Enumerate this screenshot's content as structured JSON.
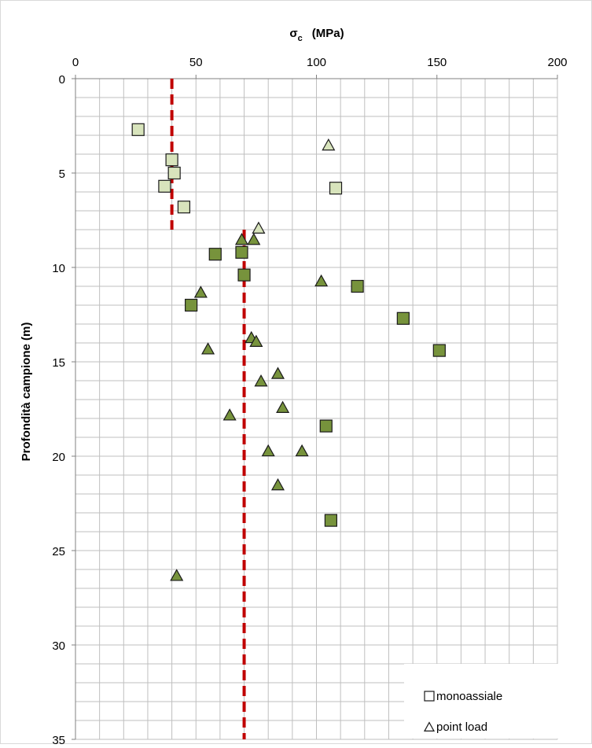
{
  "chart_data": {
    "type": "scatter",
    "title": "",
    "xlabel": "σc  (MPa)",
    "xlabel_main": "σ",
    "xlabel_sub": "c",
    "xlabel_unit": "(MPa)",
    "ylabel": "Profondità campione (m)",
    "xlim": [
      0,
      200
    ],
    "ylim": [
      0,
      35
    ],
    "y_inverted": true,
    "x_axis_position": "top",
    "x_ticks": [
      "0",
      "50",
      "100",
      "150",
      "200"
    ],
    "y_ticks": [
      "0",
      "5",
      "10",
      "15",
      "20",
      "25",
      "30",
      "35"
    ],
    "grid": true,
    "legend_position": "bottom-right",
    "colors": {
      "light_fill": "#d8e4bc",
      "dark_fill": "#77933c",
      "marker_stroke": "#1a1a1a",
      "reference_line": "#c00000",
      "grid": "#bfbfbf"
    },
    "series": [
      {
        "name": "monoassiale",
        "marker": "square",
        "points": [
          {
            "x": 26,
            "y": 2.7,
            "fill": "light"
          },
          {
            "x": 40,
            "y": 4.3,
            "fill": "light"
          },
          {
            "x": 41,
            "y": 5.0,
            "fill": "light"
          },
          {
            "x": 37,
            "y": 5.7,
            "fill": "light"
          },
          {
            "x": 45,
            "y": 6.8,
            "fill": "light"
          },
          {
            "x": 108,
            "y": 5.8,
            "fill": "light"
          },
          {
            "x": 58,
            "y": 9.3,
            "fill": "dark"
          },
          {
            "x": 69,
            "y": 9.2,
            "fill": "dark"
          },
          {
            "x": 70,
            "y": 10.4,
            "fill": "dark"
          },
          {
            "x": 48,
            "y": 12.0,
            "fill": "dark"
          },
          {
            "x": 117,
            "y": 11.0,
            "fill": "dark"
          },
          {
            "x": 136,
            "y": 12.7,
            "fill": "dark"
          },
          {
            "x": 151,
            "y": 14.4,
            "fill": "dark"
          },
          {
            "x": 104,
            "y": 18.4,
            "fill": "dark"
          },
          {
            "x": 106,
            "y": 23.4,
            "fill": "dark"
          }
        ]
      },
      {
        "name": "point load",
        "marker": "triangle",
        "points": [
          {
            "x": 105,
            "y": 3.5,
            "fill": "light"
          },
          {
            "x": 76,
            "y": 7.9,
            "fill": "light"
          },
          {
            "x": 69,
            "y": 8.5,
            "fill": "dark"
          },
          {
            "x": 74,
            "y": 8.5,
            "fill": "dark"
          },
          {
            "x": 102,
            "y": 10.7,
            "fill": "dark"
          },
          {
            "x": 52,
            "y": 11.3,
            "fill": "dark"
          },
          {
            "x": 73,
            "y": 13.7,
            "fill": "dark"
          },
          {
            "x": 75,
            "y": 13.9,
            "fill": "dark"
          },
          {
            "x": 55,
            "y": 14.3,
            "fill": "dark"
          },
          {
            "x": 84,
            "y": 15.6,
            "fill": "dark"
          },
          {
            "x": 77,
            "y": 16.0,
            "fill": "dark"
          },
          {
            "x": 86,
            "y": 17.4,
            "fill": "dark"
          },
          {
            "x": 64,
            "y": 17.8,
            "fill": "dark"
          },
          {
            "x": 80,
            "y": 19.7,
            "fill": "dark"
          },
          {
            "x": 94,
            "y": 19.7,
            "fill": "dark"
          },
          {
            "x": 84,
            "y": 21.5,
            "fill": "dark"
          },
          {
            "x": 42,
            "y": 26.3,
            "fill": "dark"
          }
        ]
      }
    ],
    "reference_lines": [
      {
        "x": 40,
        "y_from": 0,
        "y_to": 8,
        "style": "dashed"
      },
      {
        "x": 70,
        "y_from": 8,
        "y_to": 35,
        "style": "dashed"
      }
    ]
  }
}
